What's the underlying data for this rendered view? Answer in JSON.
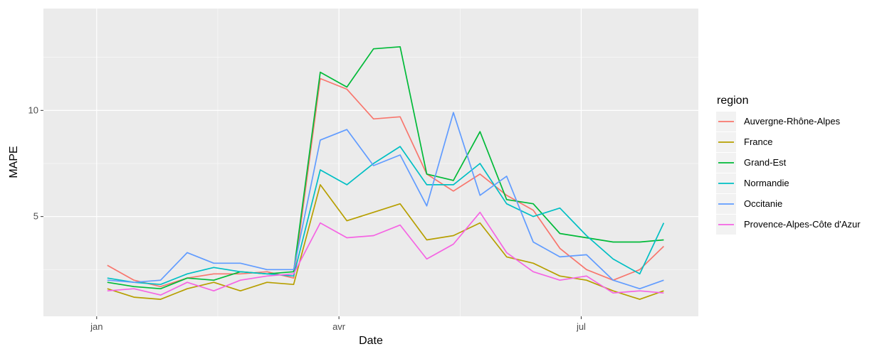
{
  "chart_data": {
    "type": "line",
    "title": "",
    "xlabel": "Date",
    "ylabel": "MAPE",
    "x_axis": {
      "type": "date",
      "ticks": [
        "jan",
        "avr",
        "jul"
      ],
      "tick_dates": [
        "2020-01-01",
        "2020-04-01",
        "2020-07-01"
      ],
      "range": [
        "2019-12-12",
        "2020-08-14"
      ]
    },
    "y_axis": {
      "ticks": [
        5,
        10
      ],
      "range": [
        0.3,
        14.8
      ]
    },
    "grid": true,
    "legend": {
      "title": "region",
      "position": "right"
    },
    "x": [
      "2020-01-05",
      "2020-01-15",
      "2020-01-25",
      "2020-02-04",
      "2020-02-14",
      "2020-02-24",
      "2020-03-05",
      "2020-03-15",
      "2020-03-25",
      "2020-04-04",
      "2020-04-14",
      "2020-04-24",
      "2020-05-04",
      "2020-05-14",
      "2020-05-24",
      "2020-06-03",
      "2020-06-13",
      "2020-06-23",
      "2020-07-03",
      "2020-07-13",
      "2020-07-23",
      "2020-08-01"
    ],
    "series": [
      {
        "name": "Auvergne-Rhône-Alpes",
        "color": "#F8766D",
        "values": [
          2.7,
          2.0,
          1.7,
          2.1,
          2.3,
          2.3,
          2.4,
          2.1,
          11.5,
          11.0,
          9.6,
          9.7,
          7.0,
          6.2,
          7.0,
          6.0,
          5.3,
          3.5,
          2.5,
          2.0,
          2.5,
          3.6
        ]
      },
      {
        "name": "France",
        "color": "#B79F00",
        "values": [
          1.6,
          1.2,
          1.1,
          1.6,
          1.9,
          1.5,
          1.9,
          1.8,
          6.5,
          4.8,
          5.2,
          5.6,
          3.9,
          4.1,
          4.7,
          3.1,
          2.8,
          2.2,
          2.0,
          1.5,
          1.1,
          1.5
        ]
      },
      {
        "name": "Grand-Est",
        "color": "#00BA38",
        "values": [
          1.9,
          1.7,
          1.6,
          2.1,
          2.0,
          2.4,
          2.3,
          2.4,
          11.8,
          11.1,
          12.9,
          13.0,
          7.0,
          6.7,
          9.0,
          5.8,
          5.6,
          4.2,
          4.0,
          3.8,
          3.8,
          3.9
        ]
      },
      {
        "name": "Normandie",
        "color": "#00BFC4",
        "values": [
          2.1,
          1.9,
          1.8,
          2.3,
          2.6,
          2.4,
          2.3,
          2.2,
          7.2,
          6.5,
          7.5,
          8.3,
          6.5,
          6.5,
          7.5,
          5.6,
          5.0,
          5.4,
          4.1,
          3.0,
          2.3,
          4.7
        ]
      },
      {
        "name": "Occitanie",
        "color": "#619CFF",
        "values": [
          2.0,
          1.9,
          2.0,
          3.3,
          2.8,
          2.8,
          2.5,
          2.5,
          8.6,
          9.1,
          7.4,
          7.9,
          5.5,
          9.9,
          6.0,
          6.9,
          3.8,
          3.1,
          3.2,
          2.0,
          1.6,
          2.0
        ]
      },
      {
        "name": "Provence-Alpes-Côte d'Azur",
        "color": "#F564E3",
        "values": [
          1.5,
          1.6,
          1.3,
          1.9,
          1.5,
          2.0,
          2.2,
          2.3,
          4.7,
          4.0,
          4.1,
          4.6,
          3.0,
          3.7,
          5.2,
          3.3,
          2.4,
          2.0,
          2.2,
          1.4,
          1.5,
          1.4
        ]
      }
    ]
  }
}
